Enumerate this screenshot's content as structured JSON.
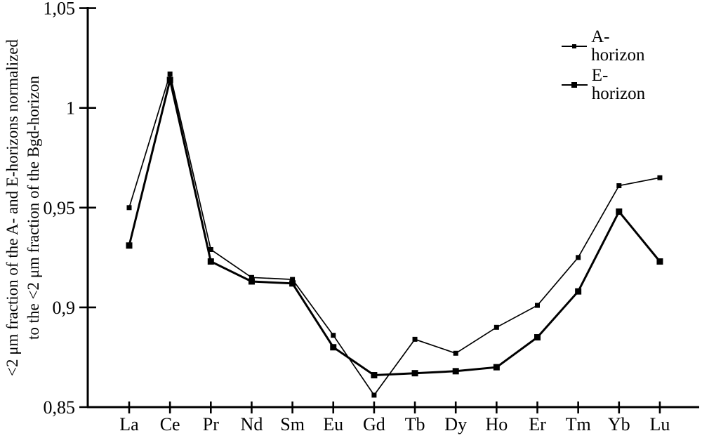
{
  "figure": {
    "background_color": "#ffffff",
    "ink_color": "#000000"
  },
  "y_axis": {
    "title_line1": "<2 μm fraction of the A- and E-horizons normalized",
    "title_line2": "to the <2 μm fraction of the Bgd-horizon",
    "tick_labels": [
      "1,05",
      "1",
      "0,95",
      "0,9",
      "0,85"
    ],
    "tick_values": [
      1.05,
      1.0,
      0.95,
      0.9,
      0.85
    ],
    "min": 0.85,
    "max": 1.05
  },
  "x_axis": {
    "tick_labels": [
      "La",
      "Ce",
      "Pr",
      "Nd",
      "Sm",
      "Eu",
      "Gd",
      "Tb",
      "Dy",
      "Ho",
      "Er",
      "Tm",
      "Yb",
      "Lu"
    ]
  },
  "legend": {
    "items": [
      {
        "label": "A-horizon",
        "marker": "small-square",
        "line": "thin"
      },
      {
        "label": "E-horizon",
        "marker": "square",
        "line": "thick"
      }
    ],
    "position": "top-right"
  },
  "chart_data": {
    "type": "line",
    "title": "",
    "xlabel": "",
    "ylabel": "<2 μm fraction of the A- and E-horizons normalized to the <2 μm fraction of the Bgd-horizon",
    "categories": [
      "La",
      "Ce",
      "Pr",
      "Nd",
      "Sm",
      "Eu",
      "Gd",
      "Tb",
      "Dy",
      "Ho",
      "Er",
      "Tm",
      "Yb",
      "Lu"
    ],
    "series": [
      {
        "name": "A-horizon",
        "values": [
          0.95,
          1.017,
          0.929,
          0.915,
          0.914,
          0.886,
          0.856,
          0.884,
          0.877,
          0.89,
          0.901,
          0.925,
          0.961,
          0.965
        ],
        "color": "#000000",
        "line_width": 1.7,
        "marker": "square",
        "marker_size": 7
      },
      {
        "name": "E-horizon",
        "values": [
          0.931,
          1.014,
          0.923,
          0.913,
          0.912,
          0.88,
          0.866,
          0.867,
          0.868,
          0.87,
          0.885,
          0.908,
          0.948,
          0.923
        ],
        "color": "#000000",
        "line_width": 3,
        "marker": "square",
        "marker_size": 9
      }
    ],
    "ylim": [
      0.85,
      1.05
    ],
    "y_tick_step": 0.05,
    "decimal_separator": ",",
    "grid": false,
    "legend_position": "top-right"
  }
}
